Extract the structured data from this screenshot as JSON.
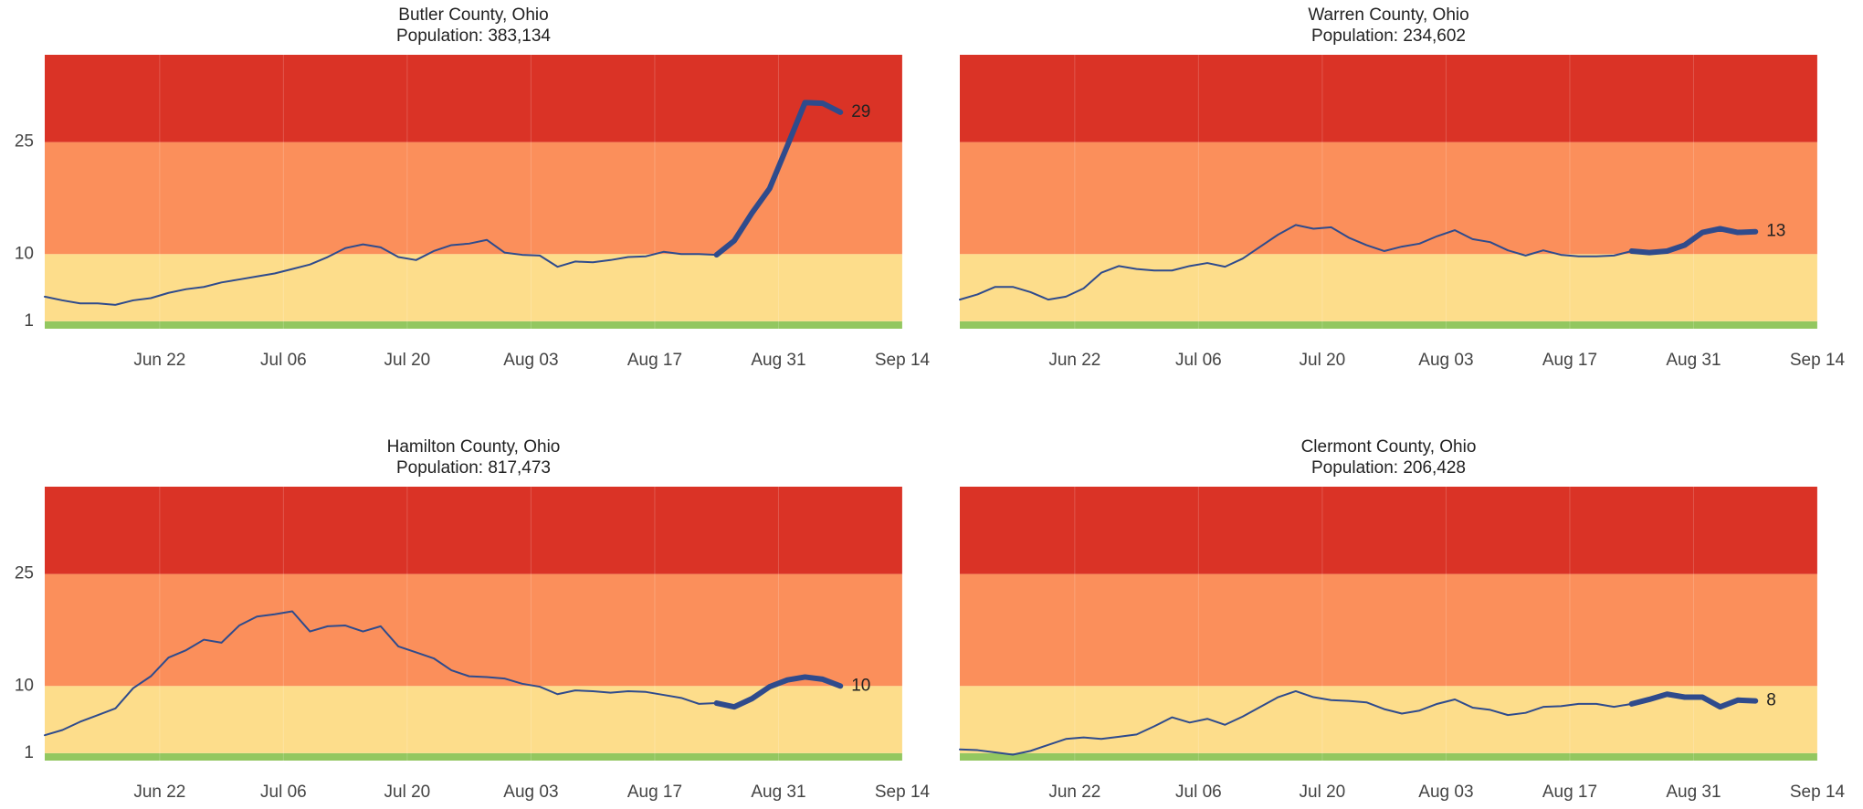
{
  "chart_data": [
    {
      "type": "line",
      "title": "Butler County, Ohio",
      "subtitle": "Population: 383,134",
      "x": [
        "Jun 09",
        "Jun 11",
        "Jun 13",
        "Jun 15",
        "Jun 17",
        "Jun 19",
        "Jun 21",
        "Jun 23",
        "Jun 25",
        "Jun 27",
        "Jun 29",
        "Jul 01",
        "Jul 03",
        "Jul 05",
        "Jul 07",
        "Jul 09",
        "Jul 11",
        "Jul 13",
        "Jul 15",
        "Jul 17",
        "Jul 19",
        "Jul 21",
        "Jul 23",
        "Jul 25",
        "Jul 27",
        "Jul 29",
        "Jul 31",
        "Aug 02",
        "Aug 04",
        "Aug 06",
        "Aug 08",
        "Aug 10",
        "Aug 12",
        "Aug 14",
        "Aug 16",
        "Aug 18",
        "Aug 20",
        "Aug 22",
        "Aug 24",
        "Aug 26",
        "Aug 28",
        "Aug 30",
        "Sep 01",
        "Sep 03",
        "Sep 05",
        "Sep 07"
      ],
      "series": [
        {
          "color": "#2f4b8c",
          "width": 2,
          "values": [
            4.3,
            3.8,
            3.4,
            3.4,
            3.2,
            3.8,
            4.1,
            4.8,
            5.3,
            5.6,
            6.2,
            6.6,
            7.0,
            7.4,
            8.0,
            8.6,
            9.6,
            10.8,
            11.3,
            10.9,
            9.6,
            9.2,
            10.4,
            11.2,
            11.4,
            11.9,
            10.2,
            9.9,
            9.8,
            8.3,
            9.0,
            8.9,
            9.2,
            9.6,
            9.7,
            10.3,
            10.0,
            10.0,
            9.9,
            null,
            null,
            null,
            null,
            null,
            null,
            null
          ]
        },
        {
          "color": "#2f4b8c",
          "width": 6,
          "values": [
            null,
            null,
            null,
            null,
            null,
            null,
            null,
            null,
            null,
            null,
            null,
            null,
            null,
            null,
            null,
            null,
            null,
            null,
            null,
            null,
            null,
            null,
            null,
            null,
            null,
            null,
            null,
            null,
            null,
            null,
            null,
            null,
            null,
            null,
            null,
            null,
            null,
            null,
            9.9,
            11.8,
            15.5,
            18.8,
            24.5,
            30.3,
            30.2,
            29
          ]
        }
      ],
      "xlim": [
        "Jun 09",
        "Sep 14"
      ],
      "xticks": [
        "Jun 22",
        "Jul 06",
        "Jul 20",
        "Aug 03",
        "Aug 17",
        "Aug 31",
        "Sep 14"
      ],
      "ylim": [
        0,
        36.7
      ],
      "yticks": [
        1,
        10,
        25
      ],
      "bands": [
        {
          "from": 0,
          "to": 1,
          "color": "#93c760"
        },
        {
          "from": 1,
          "to": 10,
          "color": "#fddd8b"
        },
        {
          "from": 10,
          "to": 25,
          "color": "#fb8f5b"
        },
        {
          "from": 25,
          "to": 36.7,
          "color": "#da3326"
        }
      ],
      "grid": true
    },
    {
      "type": "line",
      "title": "Warren County, Ohio",
      "subtitle": "Population: 234,602",
      "x": [
        "Jun 09",
        "Jun 11",
        "Jun 13",
        "Jun 15",
        "Jun 17",
        "Jun 19",
        "Jun 21",
        "Jun 23",
        "Jun 25",
        "Jun 27",
        "Jun 29",
        "Jul 01",
        "Jul 03",
        "Jul 05",
        "Jul 07",
        "Jul 09",
        "Jul 11",
        "Jul 13",
        "Jul 15",
        "Jul 17",
        "Jul 19",
        "Jul 21",
        "Jul 23",
        "Jul 25",
        "Jul 27",
        "Jul 29",
        "Jul 31",
        "Aug 02",
        "Aug 04",
        "Aug 06",
        "Aug 08",
        "Aug 10",
        "Aug 12",
        "Aug 14",
        "Aug 16",
        "Aug 18",
        "Aug 20",
        "Aug 22",
        "Aug 24",
        "Aug 26",
        "Aug 28",
        "Aug 30",
        "Sep 01",
        "Sep 03",
        "Sep 05",
        "Sep 07"
      ],
      "series": [
        {
          "color": "#2f4b8c",
          "width": 2,
          "values": [
            3.9,
            4.6,
            5.6,
            5.6,
            4.9,
            3.9,
            4.3,
            5.4,
            7.5,
            8.4,
            8.0,
            7.8,
            7.8,
            8.4,
            8.8,
            8.3,
            9.4,
            11.0,
            12.6,
            13.9,
            13.4,
            13.6,
            12.2,
            11.2,
            10.4,
            11.0,
            11.4,
            12.4,
            13.2,
            12.0,
            11.6,
            10.5,
            9.8,
            10.5,
            9.9,
            9.7,
            9.7,
            9.8,
            10.4,
            null,
            null,
            null,
            null,
            null,
            null,
            null
          ]
        },
        {
          "color": "#2f4b8c",
          "width": 6,
          "values": [
            null,
            null,
            null,
            null,
            null,
            null,
            null,
            null,
            null,
            null,
            null,
            null,
            null,
            null,
            null,
            null,
            null,
            null,
            null,
            null,
            null,
            null,
            null,
            null,
            null,
            null,
            null,
            null,
            null,
            null,
            null,
            null,
            null,
            null,
            null,
            null,
            null,
            null,
            10.4,
            10.2,
            10.4,
            11.2,
            12.9,
            13.4,
            12.9,
            13
          ]
        }
      ],
      "xlim": [
        "Jun 09",
        "Sep 14"
      ],
      "xticks": [
        "Jun 22",
        "Jul 06",
        "Jul 20",
        "Aug 03",
        "Aug 17",
        "Aug 31",
        "Sep 14"
      ],
      "ylim": [
        0,
        36.7
      ],
      "bands": [
        {
          "from": 0,
          "to": 1,
          "color": "#93c760"
        },
        {
          "from": 1,
          "to": 10,
          "color": "#fddd8b"
        },
        {
          "from": 10,
          "to": 25,
          "color": "#fb8f5b"
        },
        {
          "from": 25,
          "to": 36.7,
          "color": "#da3326"
        }
      ],
      "grid": true
    },
    {
      "type": "line",
      "title": "Hamilton County, Ohio",
      "subtitle": "Population: 817,473",
      "x": [
        "Jun 09",
        "Jun 11",
        "Jun 13",
        "Jun 15",
        "Jun 17",
        "Jun 19",
        "Jun 21",
        "Jun 23",
        "Jun 25",
        "Jun 27",
        "Jun 29",
        "Jul 01",
        "Jul 03",
        "Jul 05",
        "Jul 07",
        "Jul 09",
        "Jul 11",
        "Jul 13",
        "Jul 15",
        "Jul 17",
        "Jul 19",
        "Jul 21",
        "Jul 23",
        "Jul 25",
        "Jul 27",
        "Jul 29",
        "Jul 31",
        "Aug 02",
        "Aug 04",
        "Aug 06",
        "Aug 08",
        "Aug 10",
        "Aug 12",
        "Aug 14",
        "Aug 16",
        "Aug 18",
        "Aug 20",
        "Aug 22",
        "Aug 24",
        "Aug 26",
        "Aug 28",
        "Aug 30",
        "Sep 01",
        "Sep 03",
        "Sep 05",
        "Sep 07"
      ],
      "series": [
        {
          "color": "#2f4b8c",
          "width": 2,
          "values": [
            3.4,
            4.1,
            5.2,
            6.1,
            7.0,
            9.7,
            11.3,
            13.8,
            14.8,
            16.2,
            15.8,
            18.1,
            19.3,
            19.6,
            20.0,
            17.3,
            18.0,
            18.1,
            17.3,
            18.0,
            15.3,
            14.5,
            13.7,
            12.1,
            11.3,
            11.2,
            11.0,
            10.3,
            9.9,
            8.9,
            9.4,
            9.3,
            9.1,
            9.3,
            9.2,
            8.8,
            8.4,
            7.6,
            7.7,
            null,
            null,
            null,
            null,
            null,
            null,
            null
          ]
        },
        {
          "color": "#2f4b8c",
          "width": 6,
          "values": [
            null,
            null,
            null,
            null,
            null,
            null,
            null,
            null,
            null,
            null,
            null,
            null,
            null,
            null,
            null,
            null,
            null,
            null,
            null,
            null,
            null,
            null,
            null,
            null,
            null,
            null,
            null,
            null,
            null,
            null,
            null,
            null,
            null,
            null,
            null,
            null,
            null,
            null,
            7.7,
            7.2,
            8.3,
            9.9,
            10.8,
            11.2,
            10.9,
            10
          ]
        }
      ],
      "xlim": [
        "Jun 09",
        "Sep 14"
      ],
      "xticks": [
        "Jun 22",
        "Jul 06",
        "Jul 20",
        "Aug 03",
        "Aug 17",
        "Aug 31",
        "Sep 14"
      ],
      "ylim": [
        0,
        36.7
      ],
      "yticks": [
        1,
        10,
        25
      ],
      "bands": [
        {
          "from": 0,
          "to": 1,
          "color": "#93c760"
        },
        {
          "from": 1,
          "to": 10,
          "color": "#fddd8b"
        },
        {
          "from": 10,
          "to": 25,
          "color": "#fb8f5b"
        },
        {
          "from": 25,
          "to": 36.7,
          "color": "#da3326"
        }
      ],
      "grid": true
    },
    {
      "type": "line",
      "title": "Clermont County, Ohio",
      "subtitle": "Population: 206,428",
      "x": [
        "Jun 09",
        "Jun 11",
        "Jun 13",
        "Jun 15",
        "Jun 17",
        "Jun 19",
        "Jun 21",
        "Jun 23",
        "Jun 25",
        "Jun 27",
        "Jun 29",
        "Jul 01",
        "Jul 03",
        "Jul 05",
        "Jul 07",
        "Jul 09",
        "Jul 11",
        "Jul 13",
        "Jul 15",
        "Jul 17",
        "Jul 19",
        "Jul 21",
        "Jul 23",
        "Jul 25",
        "Jul 27",
        "Jul 29",
        "Jul 31",
        "Aug 02",
        "Aug 04",
        "Aug 06",
        "Aug 08",
        "Aug 10",
        "Aug 12",
        "Aug 14",
        "Aug 16",
        "Aug 18",
        "Aug 20",
        "Aug 22",
        "Aug 24",
        "Aug 26",
        "Aug 28",
        "Aug 30",
        "Sep 01",
        "Sep 03",
        "Sep 05",
        "Sep 07"
      ],
      "series": [
        {
          "color": "#2f4b8c",
          "width": 2,
          "values": [
            1.5,
            1.4,
            1.1,
            0.8,
            1.3,
            2.1,
            2.9,
            3.1,
            2.9,
            3.2,
            3.5,
            4.6,
            5.8,
            5.1,
            5.6,
            4.8,
            5.9,
            7.2,
            8.5,
            9.3,
            8.5,
            8.1,
            8.0,
            7.8,
            6.9,
            6.3,
            6.7,
            7.6,
            8.2,
            7.1,
            6.8,
            6.1,
            6.4,
            7.2,
            7.3,
            7.6,
            7.6,
            7.2,
            7.6,
            null,
            null,
            null,
            null,
            null,
            null,
            null
          ]
        },
        {
          "color": "#2f4b8c",
          "width": 6,
          "values": [
            null,
            null,
            null,
            null,
            null,
            null,
            null,
            null,
            null,
            null,
            null,
            null,
            null,
            null,
            null,
            null,
            null,
            null,
            null,
            null,
            null,
            null,
            null,
            null,
            null,
            null,
            null,
            null,
            null,
            null,
            null,
            null,
            null,
            null,
            null,
            null,
            null,
            null,
            7.6,
            8.2,
            8.9,
            8.5,
            8.5,
            7.2,
            8.1,
            8
          ]
        }
      ],
      "xlim": [
        "Jun 09",
        "Sep 14"
      ],
      "xticks": [
        "Jun 22",
        "Jul 06",
        "Jul 20",
        "Aug 03",
        "Aug 17",
        "Aug 31",
        "Sep 14"
      ],
      "ylim": [
        0,
        36.7
      ],
      "bands": [
        {
          "from": 0,
          "to": 1,
          "color": "#93c760"
        },
        {
          "from": 1,
          "to": 10,
          "color": "#fddd8b"
        },
        {
          "from": 10,
          "to": 25,
          "color": "#fb8f5b"
        },
        {
          "from": 25,
          "to": 36.7,
          "color": "#da3326"
        }
      ],
      "grid": true
    }
  ]
}
